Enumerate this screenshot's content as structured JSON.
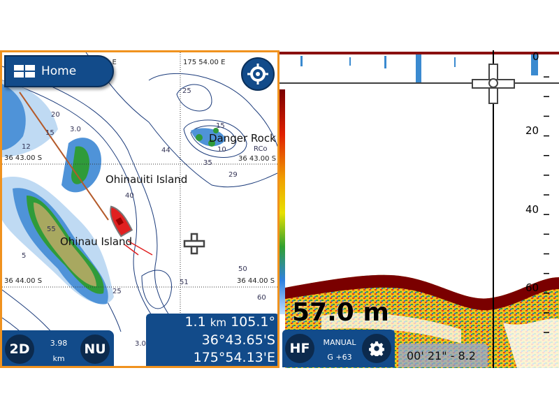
{
  "chart_panel": {
    "home_label": "Home",
    "home_icon": "grid-home-icon",
    "locate_icon": "crosshair-target-icon",
    "grid_labels": {
      "lon_left": "0 E",
      "lon_right": "175 54.00 E",
      "lat_top_left": "36 43.00 S",
      "lat_top_right": "36 43.00 S",
      "lat_bottom_left": "36 44.00 S",
      "lat_bottom_right": "36 44.00 S"
    },
    "places": [
      "Danger Rock",
      "Ohinauiti Island",
      "Ohinau Island"
    ],
    "soundings": [
      "20",
      "15",
      "12",
      "3.0",
      "25",
      "44",
      "35",
      "29",
      "10",
      "15",
      "RCo",
      "40",
      "55",
      "5",
      "51",
      "50",
      "60",
      "25",
      "3.0"
    ],
    "mode_button": "2D",
    "scale_value": "3.98",
    "scale_unit": "km",
    "orientation_button": "NU",
    "cursor_info": {
      "range": "1.1",
      "range_unit": "km",
      "bearing": "105.1°",
      "lat": "36°43.65'S",
      "lon": "175°54.13'E"
    },
    "accent_color": "#f0921e",
    "panel_color": "#124b8a"
  },
  "sonar_panel": {
    "depth_scale": [
      "0",
      "20",
      "40",
      "60"
    ],
    "current_depth": "57.0 m",
    "frequency_button": "HF",
    "gain_mode": "MANUAL",
    "gain_value": "G +63",
    "settings_icon": "gear-icon",
    "cursor_time_depth": "00' 21\" - 8.2"
  }
}
